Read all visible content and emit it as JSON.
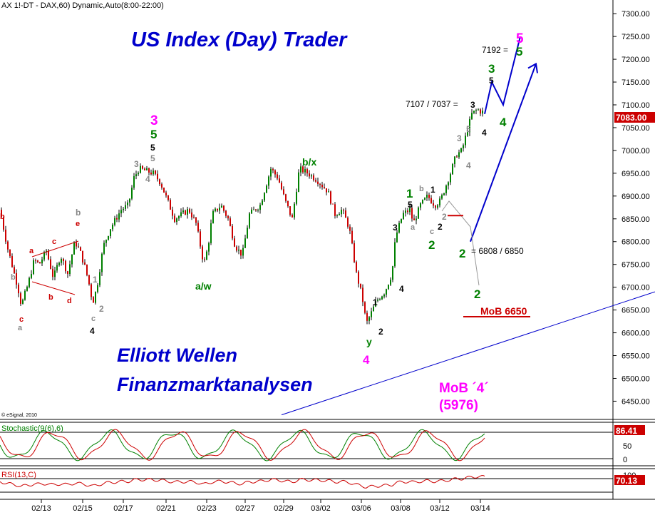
{
  "header": {
    "title": "AX 1!-DT - DAX,60) Dynamic,Auto(8:00-22:00)"
  },
  "banner": {
    "top": "US Index (Day) Trader",
    "bottom_line1": "Elliott Wellen",
    "bottom_line2": "Finanzmarktanalysen"
  },
  "copyright": "© eSignal, 2010",
  "last_price": "7083.00",
  "colors": {
    "up": "#008000",
    "down": "#cc0000",
    "accent_blue": "#0000cc",
    "magenta": "#ff00ff",
    "green_label": "#008000",
    "grey_label": "#888888",
    "red_label": "#cc0000"
  },
  "annotations": {
    "target_7192": "7192 =",
    "target_7107": "7107 / 7037 =",
    "target_6808": "= 6808 / 6850",
    "mob_6650": "MoB 6650",
    "mob_4_label": "MoB ´4´",
    "mob_4_value": "(5976)",
    "a_w": "a/w",
    "b_x": "b/x",
    "y": "y"
  },
  "indicators": {
    "stochastic": {
      "label": "Stochastic(9(6),6)",
      "value": "86.41",
      "ticks": [
        "50",
        "0"
      ]
    },
    "rsi": {
      "label": "RSI(13,C)",
      "value": "70.13",
      "ticks": [
        "100"
      ]
    }
  },
  "chart_data": {
    "type": "candlestick",
    "title": "AX 1!-DT - DAX,60) Dynamic,Auto(8:00-22:00)",
    "xlabel": "",
    "ylabel": "",
    "ylim": [
      6410,
      7330
    ],
    "y_ticks": [
      6450,
      6500,
      6550,
      6600,
      6650,
      6700,
      6750,
      6800,
      6850,
      6900,
      6950,
      7000,
      7050,
      7100,
      7150,
      7200,
      7250,
      7300
    ],
    "x_tick_labels": [
      "02/13",
      "02/15",
      "02/17",
      "02/21",
      "02/23",
      "02/27",
      "02/29",
      "03/02",
      "03/06",
      "03/08",
      "03/12",
      "03/14"
    ],
    "price_path": [
      [
        0,
        6870
      ],
      [
        10,
        6790
      ],
      [
        25,
        6700
      ],
      [
        30,
        6660
      ],
      [
        40,
        6710
      ],
      [
        48,
        6760
      ],
      [
        55,
        6750
      ],
      [
        65,
        6780
      ],
      [
        75,
        6720
      ],
      [
        85,
        6770
      ],
      [
        95,
        6730
      ],
      [
        105,
        6800
      ],
      [
        112,
        6780
      ],
      [
        120,
        6740
      ],
      [
        126,
        6700
      ],
      [
        130,
        6665
      ],
      [
        136,
        6700
      ],
      [
        145,
        6790
      ],
      [
        155,
        6830
      ],
      [
        170,
        6870
      ],
      [
        180,
        6880
      ],
      [
        188,
        6940
      ],
      [
        195,
        6960
      ],
      [
        205,
        6955
      ],
      [
        215,
        6950
      ],
      [
        225,
        6930
      ],
      [
        235,
        6890
      ],
      [
        245,
        6850
      ],
      [
        255,
        6860
      ],
      [
        265,
        6870
      ],
      [
        275,
        6840
      ],
      [
        280,
        6800
      ],
      [
        286,
        6750
      ],
      [
        292,
        6790
      ],
      [
        298,
        6860
      ],
      [
        310,
        6880
      ],
      [
        320,
        6850
      ],
      [
        330,
        6790
      ],
      [
        340,
        6770
      ],
      [
        350,
        6860
      ],
      [
        365,
        6880
      ],
      [
        380,
        6960
      ],
      [
        390,
        6940
      ],
      [
        400,
        6890
      ],
      [
        410,
        6850
      ],
      [
        420,
        6960
      ],
      [
        432,
        6950
      ],
      [
        445,
        6935
      ],
      [
        460,
        6910
      ],
      [
        470,
        6860
      ],
      [
        480,
        6870
      ],
      [
        490,
        6830
      ],
      [
        500,
        6730
      ],
      [
        508,
        6680
      ],
      [
        514,
        6620
      ],
      [
        520,
        6640
      ],
      [
        528,
        6670
      ],
      [
        540,
        6690
      ],
      [
        550,
        6730
      ],
      [
        555,
        6810
      ],
      [
        565,
        6860
      ],
      [
        575,
        6870
      ],
      [
        580,
        6840
      ],
      [
        590,
        6880
      ],
      [
        600,
        6900
      ],
      [
        610,
        6880
      ],
      [
        618,
        6890
      ],
      [
        625,
        6920
      ],
      [
        632,
        6950
      ],
      [
        640,
        6990
      ],
      [
        648,
        7000
      ],
      [
        655,
        7040
      ],
      [
        662,
        7080
      ],
      [
        670,
        7090
      ],
      [
        675,
        7085
      ],
      [
        680,
        7083
      ]
    ],
    "last_value": 7083.0,
    "projection_path": [
      [
        680,
        7080
      ],
      [
        690,
        7150
      ],
      [
        706,
        7100
      ],
      [
        730,
        7250
      ]
    ],
    "projection_arrow": [
      [
        660,
        6800
      ],
      [
        752,
        7190
      ]
    ],
    "trendline": [
      [
        395,
        6420
      ],
      [
        919,
        6690
      ]
    ],
    "mob_level": 6650,
    "support_level": 6857
  }
}
